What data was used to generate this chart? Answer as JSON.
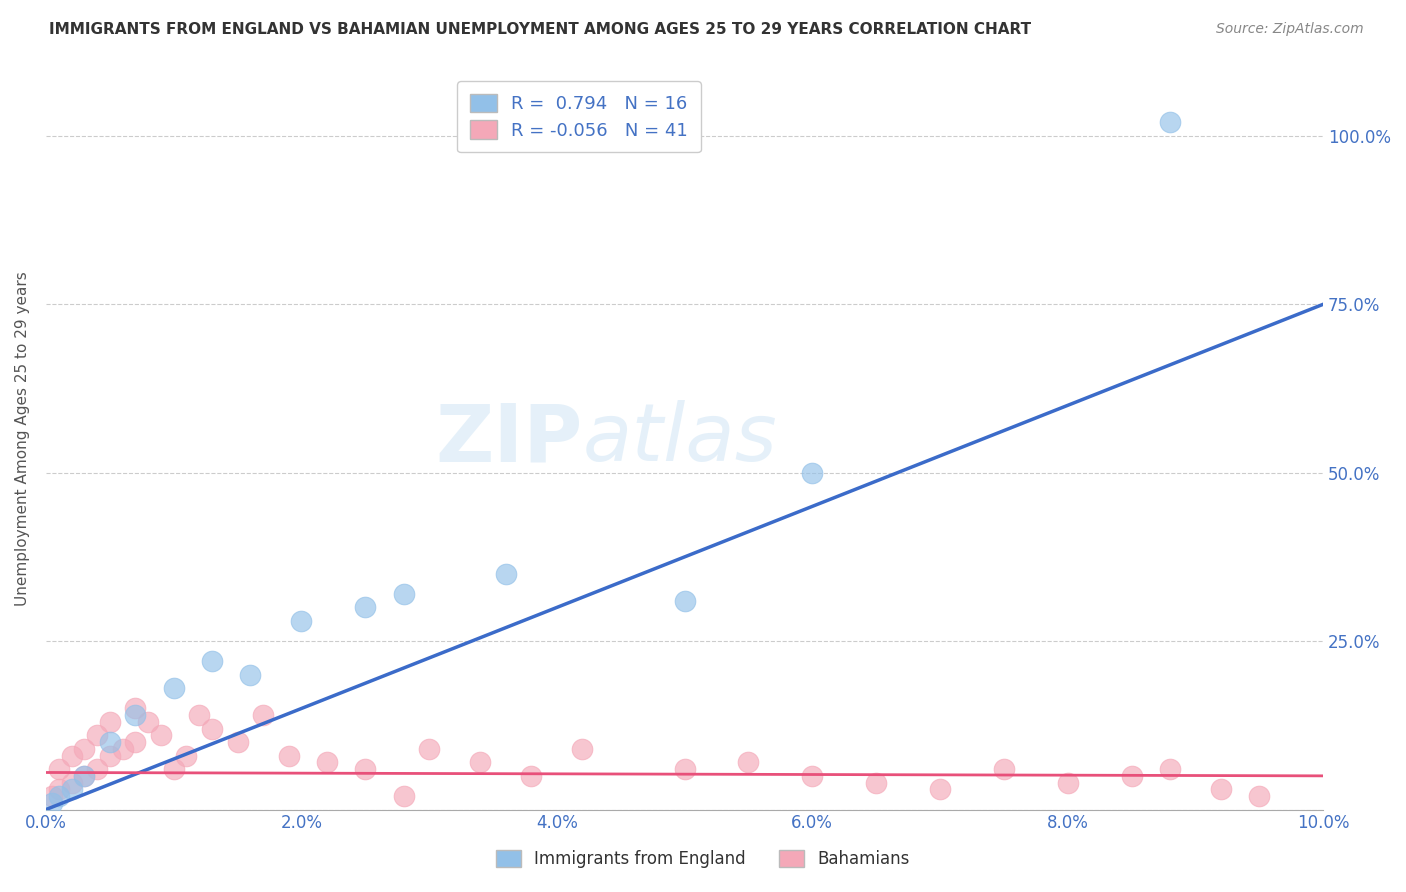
{
  "title": "IMMIGRANTS FROM ENGLAND VS BAHAMIAN UNEMPLOYMENT AMONG AGES 25 TO 29 YEARS CORRELATION CHART",
  "source": "Source: ZipAtlas.com",
  "ylabel": "Unemployment Among Ages 25 to 29 years",
  "xlim": [
    0.0,
    0.1
  ],
  "ylim": [
    0.0,
    1.1
  ],
  "xticks": [
    0.0,
    0.02,
    0.04,
    0.06,
    0.08,
    0.1
  ],
  "xticklabels": [
    "0.0%",
    "2.0%",
    "4.0%",
    "6.0%",
    "8.0%",
    "10.0%"
  ],
  "ytick_positions": [
    0.0,
    0.25,
    0.5,
    0.75,
    1.0
  ],
  "ytick_labels": [
    "",
    "25.0%",
    "50.0%",
    "75.0%",
    "100.0%"
  ],
  "background_color": "#ffffff",
  "blue_color": "#92C0E8",
  "pink_color": "#F4A8B8",
  "blue_line_color": "#3B6BC9",
  "pink_line_color": "#E8507A",
  "grid_color": "#cccccc",
  "title_color": "#333333",
  "axis_label_color": "#555555",
  "tick_label_color": "#4472C4",
  "legend_text_color": "#4472C4",
  "R_blue": 0.794,
  "N_blue": 16,
  "R_pink": -0.056,
  "N_pink": 41,
  "blue_scatter_x": [
    0.0005,
    0.001,
    0.002,
    0.003,
    0.005,
    0.007,
    0.01,
    0.013,
    0.016,
    0.02,
    0.025,
    0.028,
    0.036,
    0.05,
    0.06,
    0.088
  ],
  "blue_scatter_y": [
    0.01,
    0.02,
    0.03,
    0.05,
    0.1,
    0.14,
    0.18,
    0.22,
    0.2,
    0.28,
    0.3,
    0.32,
    0.35,
    0.31,
    0.5,
    1.02
  ],
  "pink_scatter_x": [
    0.0005,
    0.001,
    0.001,
    0.002,
    0.002,
    0.003,
    0.003,
    0.004,
    0.004,
    0.005,
    0.005,
    0.006,
    0.007,
    0.007,
    0.008,
    0.009,
    0.01,
    0.011,
    0.012,
    0.013,
    0.015,
    0.017,
    0.019,
    0.022,
    0.025,
    0.028,
    0.03,
    0.034,
    0.038,
    0.042,
    0.05,
    0.055,
    0.06,
    0.065,
    0.07,
    0.075,
    0.08,
    0.085,
    0.088,
    0.092,
    0.095
  ],
  "pink_scatter_y": [
    0.02,
    0.03,
    0.06,
    0.04,
    0.08,
    0.05,
    0.09,
    0.06,
    0.11,
    0.08,
    0.13,
    0.09,
    0.1,
    0.15,
    0.13,
    0.11,
    0.06,
    0.08,
    0.14,
    0.12,
    0.1,
    0.14,
    0.08,
    0.07,
    0.06,
    0.02,
    0.09,
    0.07,
    0.05,
    0.09,
    0.06,
    0.07,
    0.05,
    0.04,
    0.03,
    0.06,
    0.04,
    0.05,
    0.06,
    0.03,
    0.02
  ],
  "blue_line_x": [
    0.0,
    0.1
  ],
  "blue_line_y": [
    0.0,
    0.75
  ],
  "pink_line_x": [
    0.0,
    0.1
  ],
  "pink_line_y": [
    0.055,
    0.05
  ],
  "figsize": [
    14.06,
    8.92
  ],
  "dpi": 100
}
